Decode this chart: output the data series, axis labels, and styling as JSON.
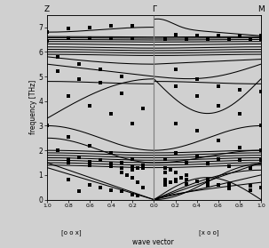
{
  "ylabel": "frequency [THz]",
  "xlabel": "wave vector",
  "xlabel_left": "[o o x]",
  "xlabel_right": "[x o o]",
  "ylim": [
    0.0,
    7.5
  ],
  "yticks": [
    0,
    1,
    2,
    3,
    4,
    5,
    6,
    7
  ],
  "left_label": "Z",
  "center_label": "Γ",
  "right_label": "M",
  "bg_color": "#d0d0d0",
  "line_color": "black",
  "figsize": [
    3.03,
    2.79
  ],
  "dpi": 100,
  "scatter_points_left": {
    "x": [
      -1.0,
      -0.8,
      -0.6,
      -0.4,
      -0.2,
      -1.0,
      -0.8,
      -0.6,
      -0.4,
      -0.2,
      -0.9,
      -0.7,
      -0.5,
      -0.3,
      -0.9,
      -0.7,
      -0.5,
      -0.3,
      -0.1,
      -0.8,
      -0.6,
      -0.4,
      -0.2,
      -1.0,
      -0.8,
      -0.6,
      -0.4,
      -0.2,
      -0.9,
      -0.7,
      -0.5,
      -0.3,
      -0.1,
      -0.8,
      -0.6,
      -0.4,
      -0.2,
      -0.1,
      -0.8,
      -0.6,
      -0.4,
      -0.3,
      -0.2,
      -0.8,
      -0.6,
      -0.4,
      -0.2,
      -0.7,
      -0.5,
      -0.3,
      -0.15
    ],
    "y": [
      6.8,
      6.95,
      7.0,
      7.05,
      7.05,
      6.45,
      6.55,
      6.55,
      6.55,
      6.55,
      5.8,
      5.5,
      5.3,
      5.0,
      5.2,
      4.9,
      4.75,
      4.3,
      3.7,
      4.2,
      3.8,
      3.5,
      3.1,
      3.0,
      2.55,
      2.2,
      1.9,
      1.65,
      2.0,
      1.7,
      1.6,
      1.5,
      1.4,
      1.65,
      1.55,
      1.45,
      1.35,
      1.3,
      1.5,
      1.4,
      1.35,
      1.3,
      1.25,
      0.8,
      0.6,
      0.4,
      0.2,
      0.35,
      0.5,
      0.35,
      0.15
    ]
  },
  "scatter_points_right": {
    "x": [
      0.2,
      0.4,
      0.6,
      0.8,
      1.0,
      0.1,
      0.3,
      0.5,
      0.7,
      0.9,
      1.0,
      0.2,
      0.4,
      0.6,
      0.8,
      1.0,
      0.2,
      0.4,
      0.6,
      0.8,
      1.0,
      0.2,
      0.4,
      0.6,
      0.8,
      1.0,
      0.2,
      0.4,
      0.6,
      0.8,
      1.0,
      0.1,
      0.3,
      0.5,
      0.7,
      0.9,
      0.1,
      0.3,
      0.5,
      0.7,
      0.9,
      1.0,
      0.1,
      0.3,
      0.5,
      0.7,
      0.9,
      0.1,
      0.2,
      0.3,
      0.4,
      0.5,
      0.6,
      0.7
    ],
    "y": [
      6.7,
      6.65,
      6.65,
      6.65,
      6.65,
      6.5,
      6.5,
      6.5,
      6.5,
      6.5,
      6.5,
      5.3,
      4.9,
      4.6,
      4.45,
      4.4,
      4.6,
      4.2,
      3.8,
      3.5,
      3.0,
      3.1,
      2.8,
      2.4,
      2.1,
      2.0,
      1.9,
      1.75,
      1.65,
      1.6,
      1.6,
      1.65,
      1.5,
      1.45,
      1.35,
      1.3,
      1.1,
      1.0,
      0.8,
      0.65,
      0.55,
      0.5,
      0.8,
      0.65,
      0.55,
      0.45,
      0.4,
      0.7,
      0.75,
      0.8,
      0.75,
      0.7,
      0.6,
      0.5
    ]
  }
}
